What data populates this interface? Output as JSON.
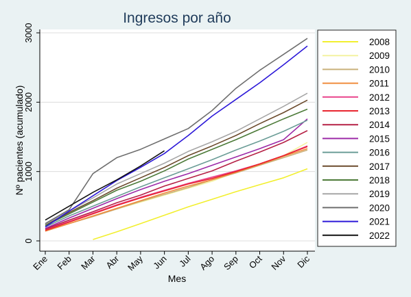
{
  "chart_data": {
    "type": "line",
    "title": "Ingresos por año",
    "xlabel": "Mes",
    "ylabel": "Nº pacientes (acumulado)",
    "categories": [
      "Ene",
      "Feb",
      "Mar",
      "Abr",
      "May",
      "Jun",
      "Jul",
      "Ago",
      "Sep",
      "Oct",
      "Nov",
      "Dic"
    ],
    "ylim": [
      0,
      3100
    ],
    "yticks": [
      0,
      1000,
      2000,
      3000
    ],
    "grid": true,
    "legend_position": "right",
    "series": [
      {
        "name": "2008",
        "color": "#f2ef2e",
        "values": [
          null,
          null,
          20,
          130,
          250,
          370,
          490,
          600,
          710,
          810,
          910,
          1040
        ]
      },
      {
        "name": "2009",
        "color": "#f4f2a0",
        "values": [
          140,
          250,
          360,
          460,
          560,
          660,
          760,
          860,
          990,
          1100,
          1230,
          1420
        ]
      },
      {
        "name": "2010",
        "color": "#c9b07a",
        "values": [
          140,
          250,
          350,
          460,
          570,
          670,
          770,
          880,
          980,
          1090,
          1200,
          1310
        ]
      },
      {
        "name": "2011",
        "color": "#f08c3c",
        "values": [
          140,
          250,
          360,
          470,
          580,
          690,
          790,
          880,
          990,
          1100,
          1220,
          1330
        ]
      },
      {
        "name": "2012",
        "color": "#e8428a",
        "values": [
          160,
          280,
          400,
          520,
          630,
          730,
          830,
          920,
          1010,
          1110,
          1230,
          1370
        ]
      },
      {
        "name": "2013",
        "color": "#e8242e",
        "values": [
          150,
          270,
          390,
          510,
          620,
          720,
          820,
          900,
          1000,
          1110,
          1230,
          1360
        ]
      },
      {
        "name": "2014",
        "color": "#b52045",
        "values": [
          170,
          300,
          420,
          550,
          660,
          790,
          900,
          1010,
          1150,
          1280,
          1420,
          1590
        ]
      },
      {
        "name": "2015",
        "color": "#9c2aa8",
        "values": [
          180,
          330,
          470,
          610,
          740,
          860,
          970,
          1090,
          1210,
          1330,
          1460,
          1760
        ]
      },
      {
        "name": "2016",
        "color": "#6a9c96",
        "values": [
          200,
          360,
          500,
          640,
          780,
          910,
          1040,
          1170,
          1310,
          1440,
          1580,
          1740
        ]
      },
      {
        "name": "2017",
        "color": "#6b4a2c",
        "values": [
          230,
          410,
          580,
          760,
          910,
          1060,
          1230,
          1370,
          1520,
          1690,
          1850,
          2030
        ]
      },
      {
        "name": "2018",
        "color": "#4c7a38",
        "values": [
          220,
          390,
          560,
          730,
          860,
          1010,
          1180,
          1320,
          1460,
          1610,
          1760,
          1900
        ]
      },
      {
        "name": "2019",
        "color": "#a6a6a6",
        "values": [
          240,
          430,
          620,
          820,
          970,
          1120,
          1290,
          1430,
          1580,
          1760,
          1940,
          2130
        ]
      },
      {
        "name": "2020",
        "color": "#6e6e6e",
        "values": [
          250,
          450,
          970,
          1200,
          1320,
          1470,
          1620,
          1880,
          2200,
          2460,
          2690,
          2920
        ]
      },
      {
        "name": "2021",
        "color": "#2b17d8",
        "values": [
          200,
          430,
          650,
          870,
          1060,
          1260,
          1520,
          1800,
          2040,
          2280,
          2540,
          2810
        ]
      },
      {
        "name": "2022",
        "color": "#111111",
        "values": [
          300,
          500,
          700,
          880,
          1080,
          1300,
          null,
          null,
          null,
          null,
          null,
          null
        ]
      }
    ]
  }
}
